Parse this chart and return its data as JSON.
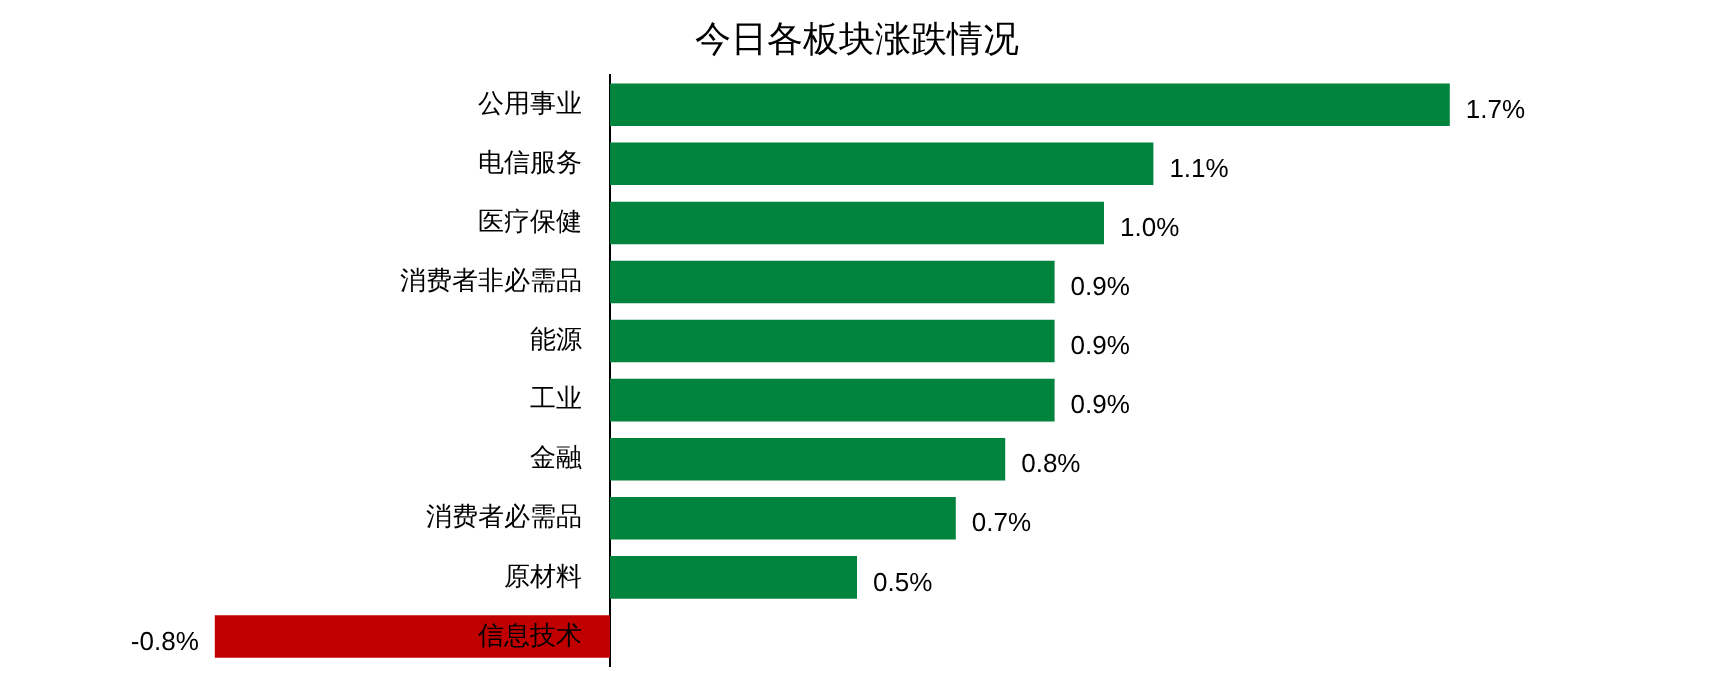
{
  "chart_data": {
    "type": "bar",
    "orientation": "horizontal",
    "title": "今日各板块涨跌情况",
    "categories": [
      "公用事业",
      "电信服务",
      "医疗保健",
      "消费者非必需品",
      "能源",
      "工业",
      "金融",
      "消费者必需品",
      "原材料",
      "信息技术"
    ],
    "values": [
      1.7,
      1.1,
      1.0,
      0.9,
      0.9,
      0.9,
      0.8,
      0.7,
      0.5,
      -0.8
    ],
    "value_labels": [
      "1.7%",
      "1.1%",
      "1.0%",
      "0.9%",
      "0.9%",
      "0.9%",
      "0.8%",
      "0.7%",
      "0.5%",
      "-0.8%"
    ],
    "colors": [
      "#00843d",
      "#00843d",
      "#00843d",
      "#00843d",
      "#00843d",
      "#00843d",
      "#00843d",
      "#00843d",
      "#00843d",
      "#c00000"
    ],
    "tick_labels": "y",
    "grid": false,
    "legend": false
  }
}
